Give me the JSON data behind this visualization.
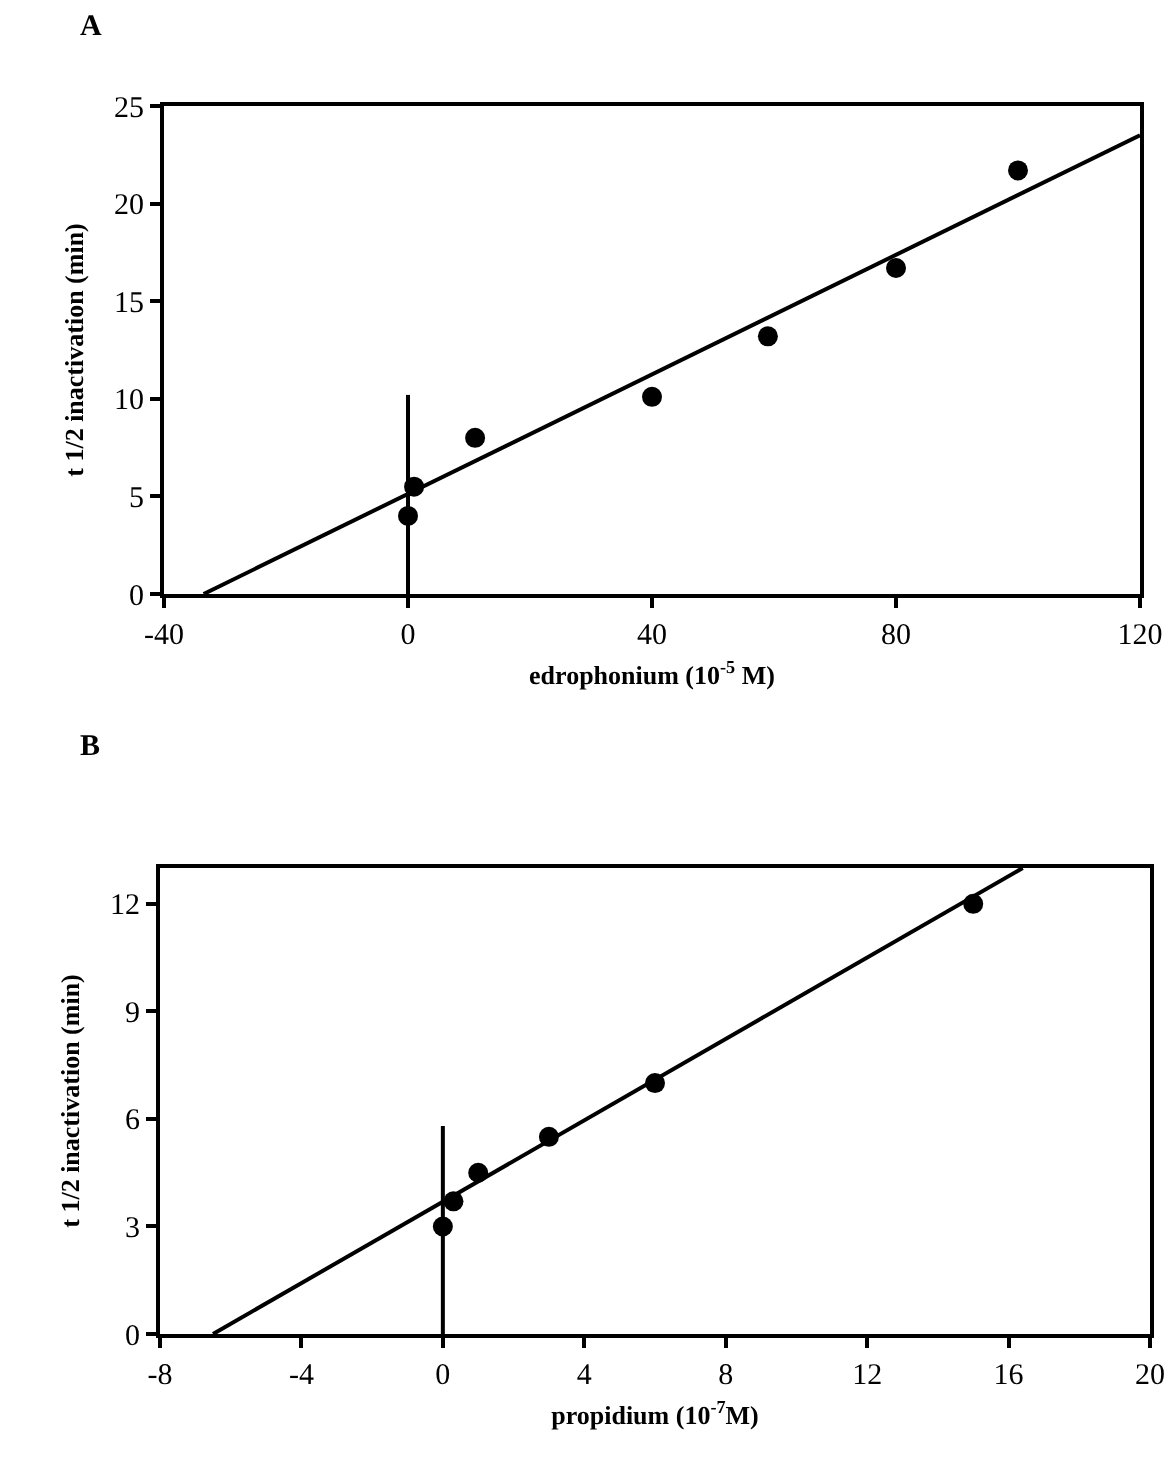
{
  "chart_data": [
    {
      "type": "scatter",
      "title": "A",
      "xlabel": "edrophonium (10$^{-5}$ M)",
      "ylabel": "t 1/2 inactivation (min)",
      "series": [
        {
          "color": "#000000",
          "x": [
            0,
            1,
            11,
            40,
            59,
            80,
            100
          ],
          "values": [
            4,
            5.5,
            8,
            10.1,
            13.2,
            16.7,
            21.7
          ]
        },
        {
          "type": "line",
          "marker": "none",
          "color": "#000000",
          "x": [
            -33.5,
            120
          ],
          "values": [
            0,
            23.5
          ]
        },
        {
          "type": "line",
          "marker": "none",
          "color": "#000000",
          "x": [
            0,
            0
          ],
          "values": [
            0,
            10.2
          ]
        }
      ],
      "xlim": [
        -40,
        120
      ],
      "xticks": [
        -40,
        0,
        40,
        80,
        120
      ],
      "ylim": [
        0,
        25
      ],
      "yticks": [
        0,
        5,
        10,
        15,
        20,
        25
      ],
      "marker": "circle",
      "line_style": "solid"
    },
    {
      "type": "scatter",
      "title": "B",
      "xlabel": "propidium (10$^{-7}$M)",
      "ylabel": "t 1/2 inactivation (min)",
      "series": [
        {
          "color": "#000000",
          "x": [
            0,
            0.3,
            1,
            3,
            6,
            15
          ],
          "values": [
            3,
            3.7,
            4.5,
            5.5,
            7,
            12
          ]
        },
        {
          "type": "line",
          "marker": "none",
          "color": "#000000",
          "x": [
            -6.5,
            16.4
          ],
          "values": [
            0,
            13
          ]
        },
        {
          "type": "line",
          "marker": "none",
          "color": "#000000",
          "x": [
            0,
            0
          ],
          "values": [
            0,
            5.8
          ]
        }
      ],
      "xlim": [
        -8,
        20
      ],
      "xticks": [
        -8,
        -4,
        0,
        4,
        8,
        12,
        16,
        20
      ],
      "ylim": [
        0,
        13
      ],
      "yticks": [
        0,
        3,
        6,
        9,
        12
      ],
      "marker": "circle",
      "line_style": "solid"
    }
  ]
}
